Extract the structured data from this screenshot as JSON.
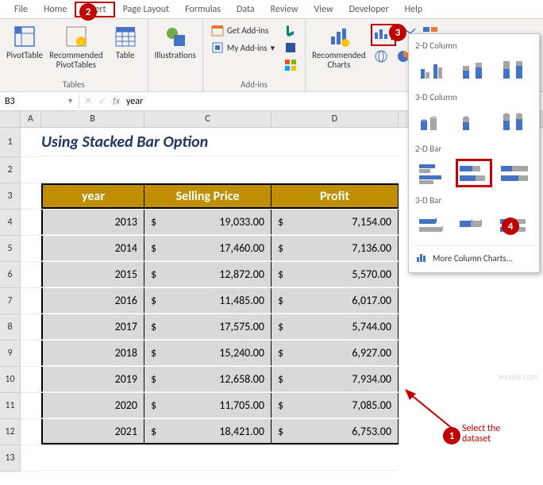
{
  "menu": {
    "file": "File",
    "home": "Home",
    "insert": "Insert",
    "pagelayout": "Page Layout",
    "formulas": "Formulas",
    "data": "Data",
    "review": "Review",
    "view": "View",
    "developer": "Developer",
    "help": "Help"
  },
  "ribbon": {
    "pivottable": "PivotTable",
    "rec_pivot": "Recommended\nPivotTables",
    "table": "Table",
    "tables_label": "Tables",
    "illustrations": "Illustrations",
    "get_addins": "Get Add-ins",
    "my_addins": "My Add-ins",
    "addins_label": "Add-ins",
    "rec_charts": "Recommended\nCharts"
  },
  "namebox": {
    "ref": "B3"
  },
  "formula": {
    "value": "year"
  },
  "cols": {
    "A": "A",
    "B": "B",
    "C": "C",
    "D": "D"
  },
  "rows_labels": [
    "1",
    "2",
    "3",
    "4",
    "5",
    "6",
    "7",
    "8",
    "9",
    "10",
    "11",
    "12",
    "13"
  ],
  "title": "Using Stacked Bar Option",
  "headers": {
    "year": "year",
    "price": "Selling Price",
    "profit": "Profit"
  },
  "data": [
    {
      "year": "2013",
      "price": "19,033.00",
      "profit": "7,154.00"
    },
    {
      "year": "2014",
      "price": "17,460.00",
      "profit": "7,136.00"
    },
    {
      "year": "2015",
      "price": "12,872.00",
      "profit": "5,570.00"
    },
    {
      "year": "2016",
      "price": "11,485.00",
      "profit": "6,017.00"
    },
    {
      "year": "2017",
      "price": "17,575.00",
      "profit": "5,744.00"
    },
    {
      "year": "2018",
      "price": "15,240.00",
      "profit": "6,927.00"
    },
    {
      "year": "2019",
      "price": "12,658.00",
      "profit": "7,934.00"
    },
    {
      "year": "2020",
      "price": "11,705.00",
      "profit": "7,085.00"
    },
    {
      "year": "2021",
      "price": "18,421.00",
      "profit": "6,753.00"
    }
  ],
  "dropdown": {
    "col2d": "2-D Column",
    "col3d": "3-D Column",
    "bar2d": "2-D Bar",
    "bar3d": "3-D Bar",
    "more": "More Column Charts..."
  },
  "annotations": {
    "n1": "1",
    "n2": "2",
    "n3": "3",
    "n4": "4",
    "select": "Select the\ndataset"
  },
  "watermark": "wsxdn.com",
  "colors": {
    "accent_red": "#c00000",
    "header_bg": "#bf8f00",
    "data_bg": "#d9d9d9",
    "title_color": "#203764",
    "excel_green": "#217346",
    "chart_blue": "#4472c4",
    "chart_gray": "#a6a6a6"
  }
}
